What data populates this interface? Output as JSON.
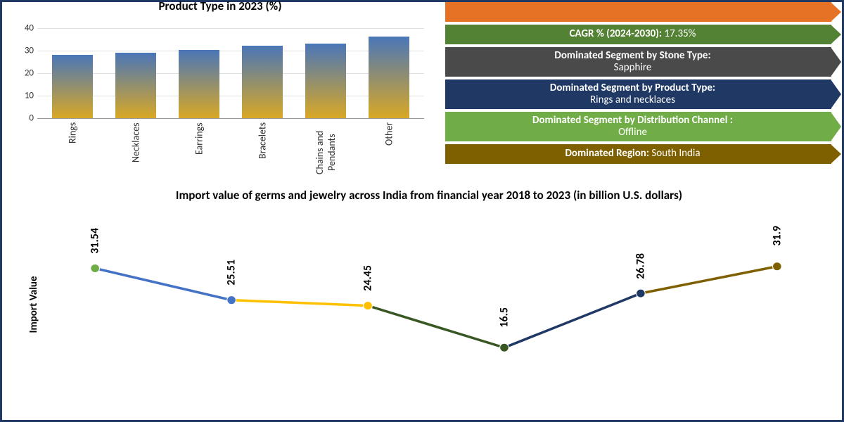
{
  "bar_chart": {
    "title": "Product Type in 2023 (%)",
    "type": "bar",
    "categories": [
      "Rings",
      "Necklaces",
      "Earrings",
      "Bracelets",
      "Chains and Pendants",
      "Other"
    ],
    "values": [
      28,
      29,
      30,
      32,
      33,
      36
    ],
    "ylim": [
      0,
      45
    ],
    "yticks": [
      0,
      10,
      20,
      30,
      40
    ],
    "bar_gradient_top": "#4a76b8",
    "bar_gradient_bottom": "#d9a825",
    "grid_color": "#e0e0e0",
    "title_fontsize": 17,
    "label_fontsize": 14
  },
  "banners": [
    {
      "bg": "#e57225",
      "height": 28,
      "label": "",
      "value_single": " "
    },
    {
      "bg": "#548235",
      "height": 28,
      "label": "CAGR % (2024-2030):",
      "value": "17.35%"
    },
    {
      "bg": "#4a4a4a",
      "height": 42,
      "label": "Dominated Segment by Stone Type:",
      "value_below": "Sapphire"
    },
    {
      "bg": "#1f3864",
      "height": 42,
      "label": "Dominated Segment by Product Type:",
      "value_below": "Rings and necklaces"
    },
    {
      "bg": "#70ad47",
      "height": 42,
      "label": "Dominated Segment by Distribution Channel :",
      "value_below": "Offline"
    },
    {
      "bg": "#7f6000",
      "height": 28,
      "label": "Dominated Region:",
      "value": "South India"
    }
  ],
  "line_chart": {
    "title": "Import value of germs and jewelry across India from financial year 2018 to 2023 (in billion U.S. dollars)",
    "type": "line",
    "y_axis_label": "Import Value",
    "ylim": [
      14,
      34
    ],
    "points": [
      {
        "value": 31.54,
        "marker_color": "#70ad47",
        "segment_color_to_next": "#4472c4"
      },
      {
        "value": 25.51,
        "marker_color": "#4472c4",
        "segment_color_to_next": "#ffc000"
      },
      {
        "value": 24.45,
        "marker_color": "#ffc000",
        "segment_color_to_next": "#385723"
      },
      {
        "value": 16.5,
        "marker_color": "#385723",
        "segment_color_to_next": "#1f3864"
      },
      {
        "value": 26.78,
        "marker_color": "#1f3864",
        "segment_color_to_next": "#7f6000"
      },
      {
        "value": 31.9,
        "marker_color": "#7f6000",
        "segment_color_to_next": null
      }
    ],
    "line_width": 3.5,
    "marker_radius": 6,
    "label_fontsize": 16,
    "title_fontsize": 17
  }
}
